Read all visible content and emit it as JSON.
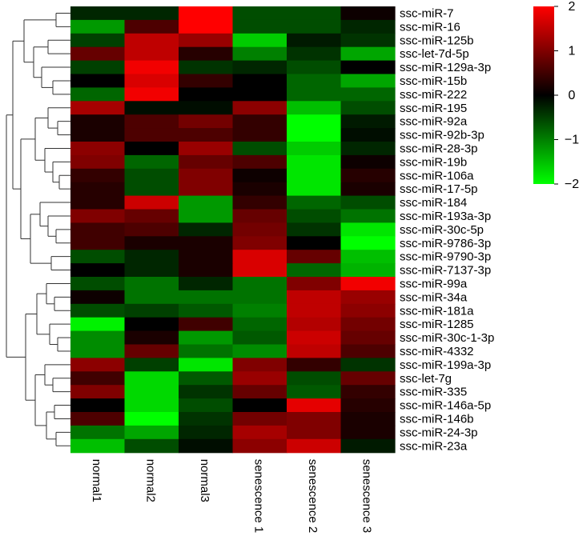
{
  "chart_data": {
    "type": "heatmap",
    "columns": [
      "normal1",
      "normal2",
      "normal3",
      "senescence 1",
      "senescence 2",
      "senescence 3"
    ],
    "rows": [
      "ssc-miR-7",
      "ssc-miR-16",
      "ssc-miR-125b",
      "ssc-let-7d-5p",
      "ssc-miR-129a-3p",
      "ssc-miR-15b",
      "ssc-miR-222",
      "ssc-miR-195",
      "ssc-miR-92a",
      "ssc-miR-92b-3p",
      "ssc-miR-28-3p",
      "ssc-miR-19b",
      "ssc-miR-106a",
      "ssc-miR-17-5p",
      "ssc-miR-184",
      "ssc-miR-193a-3p",
      "ssc-miR-30c-5p",
      "ssc-miR-9786-3p",
      "ssc-miR-9790-3p",
      "ssc-miR-7137-3p",
      "ssc-miR-99a",
      "ssc-miR-34a",
      "ssc-miR-181a",
      "ssc-miR-1285",
      "ssc-miR-30c-1-3p",
      "ssc-miR-4332",
      "ssc-miR-199a-3p",
      "ssc-let-7g",
      "ssc-miR-335",
      "ssc-miR-146a-5p",
      "ssc-miR-146b",
      "ssc-miR-24-3p",
      "ssc-miR-23a"
    ],
    "values": [
      [
        -0.3,
        -0.3,
        2.0,
        -0.6,
        -0.6,
        0.1
      ],
      [
        -1.2,
        0.6,
        2.0,
        -0.6,
        -0.6,
        -0.3
      ],
      [
        -0.5,
        1.5,
        1.2,
        -1.6,
        -0.2,
        -0.4
      ],
      [
        0.8,
        1.5,
        0.3,
        -1.0,
        -0.4,
        -1.3
      ],
      [
        -0.5,
        1.9,
        -0.4,
        -0.3,
        -0.6,
        0.0
      ],
      [
        0.0,
        1.7,
        0.4,
        0.0,
        -0.8,
        -1.3
      ],
      [
        -0.8,
        1.9,
        0.0,
        0.0,
        -0.8,
        -0.8
      ],
      [
        1.3,
        -0.1,
        -0.1,
        1.1,
        -1.5,
        -0.6
      ],
      [
        0.2,
        0.6,
        0.9,
        0.4,
        -2.0,
        -0.2
      ],
      [
        0.2,
        0.6,
        0.6,
        0.4,
        -2.0,
        -0.1
      ],
      [
        1.1,
        0.0,
        1.2,
        -0.6,
        -1.6,
        -0.3
      ],
      [
        1.0,
        -0.8,
        0.8,
        0.6,
        -1.8,
        0.1
      ],
      [
        0.4,
        -0.6,
        1.0,
        0.1,
        -1.8,
        0.3
      ],
      [
        0.3,
        -0.6,
        1.0,
        0.2,
        -1.8,
        0.2
      ],
      [
        0.3,
        1.6,
        -1.2,
        0.4,
        -0.8,
        -0.6
      ],
      [
        1.0,
        0.8,
        -1.2,
        0.8,
        -0.6,
        -0.9
      ],
      [
        0.5,
        0.6,
        -0.3,
        0.9,
        -0.4,
        -1.8
      ],
      [
        0.5,
        0.2,
        0.2,
        1.0,
        0.0,
        -2.0
      ],
      [
        -0.6,
        -0.3,
        0.2,
        1.7,
        0.8,
        -1.5
      ],
      [
        0.0,
        -0.3,
        0.2,
        1.7,
        -0.8,
        -1.4
      ],
      [
        -0.6,
        -0.9,
        -0.3,
        -0.9,
        1.0,
        1.9
      ],
      [
        0.1,
        -0.9,
        -0.9,
        -0.9,
        1.5,
        1.2
      ],
      [
        -0.6,
        -0.5,
        -0.7,
        -1.0,
        1.5,
        1.1
      ],
      [
        -1.9,
        0.0,
        0.5,
        -0.8,
        1.4,
        0.9
      ],
      [
        -1.1,
        0.2,
        -1.2,
        -0.7,
        1.6,
        0.8
      ],
      [
        -1.1,
        0.8,
        -0.9,
        -1.1,
        1.5,
        0.6
      ],
      [
        1.1,
        -0.5,
        -1.8,
        1.0,
        0.4,
        -0.4
      ],
      [
        0.5,
        -1.7,
        -0.7,
        1.2,
        -0.6,
        0.8
      ],
      [
        1.0,
        -1.7,
        -0.4,
        0.8,
        -0.7,
        0.4
      ],
      [
        0.0,
        -1.7,
        -0.6,
        0.0,
        1.8,
        0.3
      ],
      [
        0.6,
        -2.0,
        -0.4,
        0.9,
        1.0,
        0.2
      ],
      [
        -0.9,
        -1.3,
        -0.3,
        1.3,
        1.0,
        0.2
      ],
      [
        -1.5,
        -0.6,
        -0.1,
        1.1,
        1.6,
        -0.2
      ]
    ],
    "color_scale": {
      "min": -2,
      "max": 2,
      "low_color": "#00ff00",
      "mid_color": "#000000",
      "high_color": "#ff0000",
      "ticks": [
        2,
        1,
        0,
        -1,
        -2
      ]
    },
    "legend_position": "top-right",
    "dendrogram": "rows",
    "grid": false
  }
}
